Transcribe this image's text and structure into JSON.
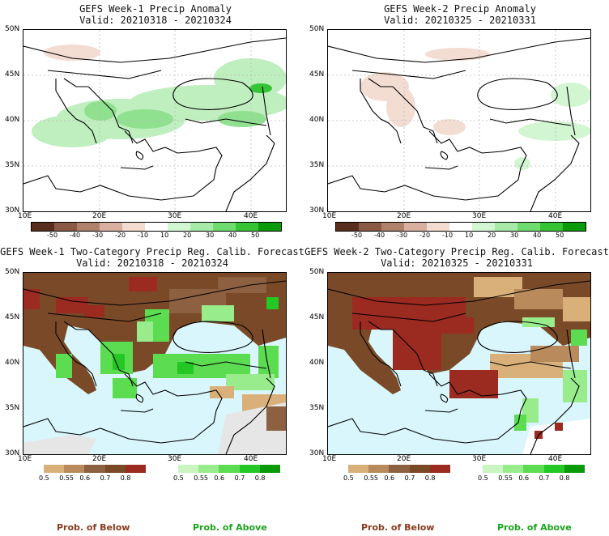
{
  "panels": [
    {
      "title": "GEFS Week-1 Precip Anomaly",
      "valid": "Valid: 20210318 - 20210324"
    },
    {
      "title": "GEFS Week-2 Precip Anomaly",
      "valid": "Valid: 20210325 - 20210331"
    },
    {
      "title": "GEFS Week-1 Two-Category Precip Reg. Calib. Forecast",
      "valid": "Valid: 20210318 - 20210324"
    },
    {
      "title": "GEFS Week-2 Two-Category Precip Reg. Calib. Forecast",
      "valid": "Valid: 20210325 - 20210331"
    }
  ],
  "lat_labels": [
    "50N",
    "45N",
    "40N",
    "35N",
    "30N"
  ],
  "lon_labels": [
    "10E",
    "20E",
    "30E",
    "40E"
  ],
  "anomaly_scale": {
    "labels": [
      "-50",
      "-40",
      "-30",
      "-20",
      "-10",
      "10",
      "20",
      "30",
      "40",
      "50"
    ],
    "colors": [
      "#5a2e1f",
      "#8b5a46",
      "#b0826c",
      "#d9b0a0",
      "#f2dcd0",
      "#ffffff",
      "#d2f5d2",
      "#a8eba8",
      "#6fdc6f",
      "#34c434",
      "#0a9a0a"
    ]
  },
  "below_scale": {
    "labels": [
      "0.5",
      "0.55",
      "0.6",
      "0.7",
      "0.8"
    ],
    "colors": [
      "#d9b07a",
      "#b88a5c",
      "#8c6040",
      "#7a4a28",
      "#9b2a20"
    ]
  },
  "above_scale": {
    "labels": [
      "0.5",
      "0.55",
      "0.6",
      "0.7",
      "0.8"
    ],
    "colors": [
      "#c8f5c0",
      "#98ec8c",
      "#5cdc50",
      "#24c824",
      "#0a9a0a"
    ]
  },
  "footer": {
    "below": "Prob. of Below",
    "above": "Prob. of Above"
  },
  "colors": {
    "sea": "#d8f6fb",
    "land_gray": "#e6e6e6",
    "below_text": "#8b3a1a",
    "above_text": "#1aa51a"
  }
}
